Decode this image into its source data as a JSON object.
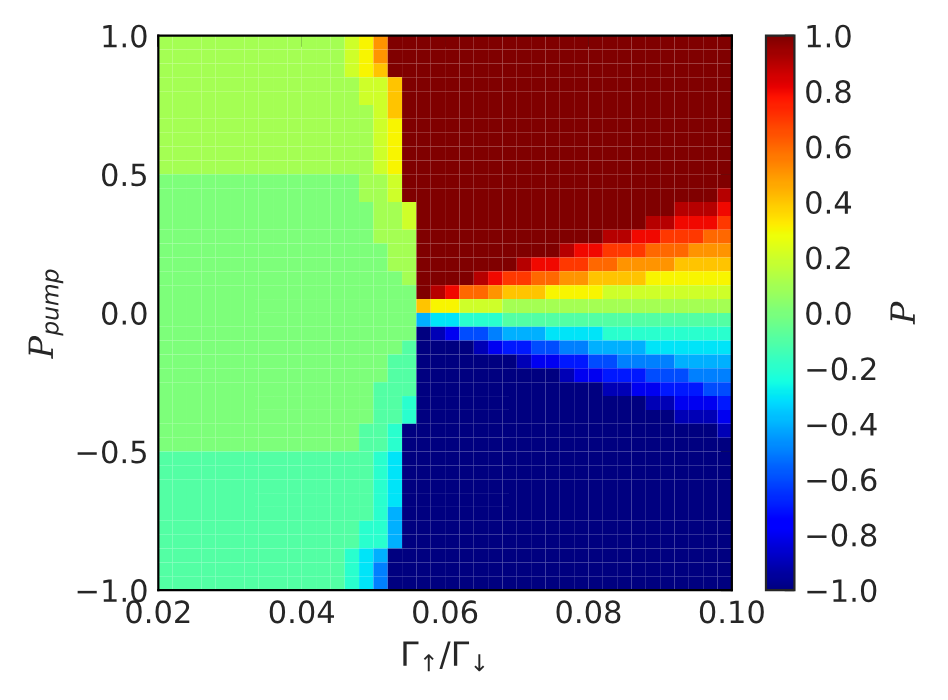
{
  "chart_data": {
    "type": "heatmap",
    "xlabel": "Γ$_{↑}$/Γ$_{↓}$",
    "ylabel": "P$_{pump}$",
    "clabel": "P",
    "x": [
      0.021,
      0.023,
      0.025,
      0.027,
      0.029,
      0.031,
      0.033,
      0.035,
      0.037,
      0.039,
      0.041,
      0.043,
      0.045,
      0.047,
      0.049,
      0.051,
      0.053,
      0.055,
      0.057,
      0.059,
      0.061,
      0.063,
      0.065,
      0.067,
      0.069,
      0.071,
      0.073,
      0.075,
      0.077,
      0.079,
      0.081,
      0.083,
      0.085,
      0.087,
      0.089,
      0.091,
      0.093,
      0.095,
      0.097,
      0.099
    ],
    "y": [
      0.975,
      0.925,
      0.875,
      0.825,
      0.775,
      0.725,
      0.675,
      0.625,
      0.575,
      0.525,
      0.475,
      0.425,
      0.375,
      0.325,
      0.275,
      0.225,
      0.175,
      0.125,
      0.075,
      0.025,
      -0.025,
      -0.075,
      -0.125,
      -0.175,
      -0.225,
      -0.275,
      -0.325,
      -0.375,
      -0.425,
      -0.475,
      -0.525,
      -0.575,
      -0.625,
      -0.675,
      -0.725,
      -0.775,
      -0.825,
      -0.875,
      -0.925,
      -0.975
    ],
    "cells": [
      [
        0.1,
        0.1,
        0.1,
        0.1,
        0.1,
        0.1,
        0.1,
        0.1,
        0.1,
        0.1,
        0.1,
        0.1,
        0.1,
        0.2,
        0.3,
        0.5,
        1,
        1,
        1,
        1,
        1,
        1,
        1,
        1,
        1,
        1,
        1,
        1,
        1,
        1,
        1,
        1,
        1,
        1,
        1,
        1,
        1,
        1,
        1,
        1
      ],
      [
        0.1,
        0.1,
        0.1,
        0.1,
        0.1,
        0.1,
        0.1,
        0.1,
        0.1,
        0.1,
        0.1,
        0.1,
        0.1,
        0.2,
        0.3,
        0.5,
        1,
        1,
        1,
        1,
        1,
        1,
        1,
        1,
        1,
        1,
        1,
        1,
        1,
        1,
        1,
        1,
        1,
        1,
        1,
        1,
        1,
        1,
        1,
        1
      ],
      [
        0.1,
        0.1,
        0.1,
        0.1,
        0.1,
        0.1,
        0.1,
        0.1,
        0.1,
        0.1,
        0.1,
        0.1,
        0.1,
        0.2,
        0.3,
        0.4,
        1,
        1,
        1,
        1,
        1,
        1,
        1,
        1,
        1,
        1,
        1,
        1,
        1,
        1,
        1,
        1,
        1,
        1,
        1,
        1,
        1,
        1,
        1,
        1
      ],
      [
        0.1,
        0.1,
        0.1,
        0.1,
        0.1,
        0.1,
        0.1,
        0.1,
        0.1,
        0.1,
        0.1,
        0.1,
        0.1,
        0.1,
        0.2,
        0.2,
        0.4,
        1,
        1,
        1,
        1,
        1,
        1,
        1,
        1,
        1,
        1,
        1,
        1,
        1,
        1,
        1,
        1,
        1,
        1,
        1,
        1,
        1,
        1,
        1
      ],
      [
        0.1,
        0.1,
        0.1,
        0.1,
        0.1,
        0.1,
        0.1,
        0.1,
        0.1,
        0.1,
        0.1,
        0.1,
        0.1,
        0.1,
        0.2,
        0.2,
        0.4,
        1,
        1,
        1,
        1,
        1,
        1,
        1,
        1,
        1,
        1,
        1,
        1,
        1,
        1,
        1,
        1,
        1,
        1,
        1,
        1,
        1,
        1,
        1
      ],
      [
        0.1,
        0.1,
        0.1,
        0.1,
        0.1,
        0.1,
        0.1,
        0.1,
        0.1,
        0.1,
        0.1,
        0.1,
        0.1,
        0.1,
        0.1,
        0.2,
        0.4,
        1,
        1,
        1,
        1,
        1,
        1,
        1,
        1,
        1,
        1,
        1,
        1,
        1,
        1,
        1,
        1,
        1,
        1,
        1,
        1,
        1,
        1,
        1
      ],
      [
        0.1,
        0.1,
        0.1,
        0.1,
        0.1,
        0.1,
        0.1,
        0.1,
        0.1,
        0.1,
        0.1,
        0.1,
        0.1,
        0.1,
        0.1,
        0.2,
        0.3,
        1,
        1,
        1,
        1,
        1,
        1,
        1,
        1,
        1,
        1,
        1,
        1,
        1,
        1,
        1,
        1,
        1,
        1,
        1,
        1,
        1,
        1,
        1
      ],
      [
        0.1,
        0.1,
        0.1,
        0.1,
        0.1,
        0.1,
        0.1,
        0.1,
        0.1,
        0.1,
        0.1,
        0.1,
        0.1,
        0.1,
        0.1,
        0.2,
        0.3,
        1,
        1,
        1,
        1,
        1,
        1,
        1,
        1,
        1,
        1,
        1,
        1,
        1,
        1,
        1,
        1,
        1,
        1,
        1,
        1,
        1,
        1,
        1
      ],
      [
        0.1,
        0.1,
        0.1,
        0.1,
        0.1,
        0.1,
        0.1,
        0.1,
        0.1,
        0.1,
        0.1,
        0.1,
        0.1,
        0.1,
        0.1,
        0.2,
        0.3,
        1,
        1,
        1,
        1,
        1,
        1,
        1,
        1,
        1,
        1,
        1,
        1,
        1,
        1,
        1,
        1,
        1,
        1,
        1,
        1,
        1,
        1,
        1
      ],
      [
        0.1,
        0.1,
        0.1,
        0.1,
        0.1,
        0.1,
        0.1,
        0.1,
        0.1,
        0.1,
        0.1,
        0.1,
        0.1,
        0.1,
        0.1,
        0.2,
        0.3,
        1,
        1,
        1,
        1,
        1,
        1,
        1,
        1,
        1,
        1,
        1,
        1,
        1,
        1,
        1,
        1,
        1,
        1,
        1,
        1,
        1,
        1,
        1
      ],
      [
        0,
        0,
        0,
        0,
        0,
        0,
        0,
        0,
        0,
        0,
        0,
        0,
        0,
        0,
        0.1,
        0.1,
        0.2,
        1,
        1,
        1,
        1,
        1,
        1,
        1,
        1,
        1,
        1,
        1,
        1,
        1,
        1,
        1,
        1,
        1,
        1,
        1,
        1,
        1,
        1,
        1
      ],
      [
        0,
        0,
        0,
        0,
        0,
        0,
        0,
        0,
        0,
        0,
        0,
        0,
        0,
        0,
        0.1,
        0.1,
        0.2,
        1,
        1,
        1,
        1,
        1,
        1,
        1,
        1,
        1,
        1,
        1,
        1,
        1,
        1,
        1,
        1,
        1,
        1,
        1,
        1,
        1,
        1,
        0.9
      ],
      [
        0,
        0,
        0,
        0,
        0,
        0,
        0,
        0,
        0,
        0,
        0,
        0,
        0,
        0,
        0,
        0.1,
        0.1,
        0.2,
        1,
        1,
        1,
        1,
        1,
        1,
        1,
        1,
        1,
        1,
        1,
        1,
        1,
        1,
        1,
        1,
        1,
        1,
        0.9,
        0.9,
        0.9,
        0.8
      ],
      [
        0,
        0,
        0,
        0,
        0,
        0,
        0,
        0,
        0,
        0,
        0,
        0,
        0,
        0,
        0,
        0.1,
        0.1,
        0.2,
        1,
        1,
        1,
        1,
        1,
        1,
        1,
        1,
        1,
        1,
        1,
        1,
        1,
        1,
        1,
        1,
        0.9,
        0.9,
        0.8,
        0.8,
        0.8,
        0.7
      ],
      [
        0,
        0,
        0,
        0,
        0,
        0,
        0,
        0,
        0,
        0,
        0,
        0,
        0,
        0,
        0,
        0.1,
        0.1,
        0.1,
        1,
        1,
        1,
        1,
        1,
        1,
        1,
        1,
        1,
        1,
        1,
        1,
        1,
        0.9,
        0.9,
        0.8,
        0.8,
        0.7,
        0.7,
        0.7,
        0.6,
        0.6
      ],
      [
        0,
        0,
        0,
        0,
        0,
        0,
        0,
        0,
        0,
        0,
        0,
        0,
        0,
        0,
        0,
        0,
        0.1,
        0.1,
        1,
        1,
        1,
        1,
        1,
        1,
        1,
        1,
        1,
        1,
        0.9,
        0.8,
        0.8,
        0.7,
        0.7,
        0.7,
        0.6,
        0.6,
        0.6,
        0.5,
        0.5,
        0.5
      ],
      [
        0,
        0,
        0,
        0,
        0,
        0,
        0,
        0,
        0,
        0,
        0,
        0,
        0,
        0,
        0,
        0,
        0.1,
        0.1,
        1,
        1,
        1,
        1,
        1,
        1,
        1,
        0.9,
        0.8,
        0.8,
        0.7,
        0.7,
        0.6,
        0.6,
        0.5,
        0.5,
        0.5,
        0.5,
        0.4,
        0.4,
        0.4,
        0.4
      ],
      [
        0,
        0,
        0,
        0,
        0,
        0,
        0,
        0,
        0,
        0,
        0,
        0,
        0,
        0,
        0,
        0,
        0,
        0.1,
        1,
        1,
        1,
        1,
        0.9,
        0.8,
        0.7,
        0.7,
        0.6,
        0.6,
        0.5,
        0.5,
        0.4,
        0.4,
        0.4,
        0.4,
        0.3,
        0.3,
        0.3,
        0.3,
        0.3,
        0.3
      ],
      [
        0,
        0,
        0,
        0,
        0,
        0,
        0,
        0,
        0,
        0,
        0,
        0,
        0,
        0,
        0,
        0,
        0,
        0,
        1,
        0.9,
        0.8,
        0.6,
        0.6,
        0.5,
        0.4,
        0.4,
        0.4,
        0.3,
        0.3,
        0.3,
        0.3,
        0.2,
        0.2,
        0.2,
        0.2,
        0.2,
        0.2,
        0.2,
        0.2,
        0.2
      ],
      [
        0,
        0,
        0,
        0,
        0,
        0,
        0,
        0,
        0,
        0,
        0,
        0,
        0,
        0,
        0,
        0,
        0,
        0,
        0.4,
        0.3,
        0.3,
        0.2,
        0.2,
        0.2,
        0.1,
        0.1,
        0.1,
        0.1,
        0.1,
        0.1,
        0.1,
        0.1,
        0.1,
        0.1,
        0.1,
        0.1,
        0.1,
        0.1,
        0.1,
        0.1
      ],
      [
        0,
        0,
        0,
        0,
        0,
        0,
        0,
        0,
        0,
        0,
        0,
        0,
        0,
        0,
        0,
        0,
        0,
        0,
        -0.4,
        -0.3,
        -0.3,
        -0.2,
        -0.2,
        -0.2,
        -0.1,
        -0.1,
        -0.1,
        -0.1,
        -0.1,
        -0.1,
        -0.1,
        -0.1,
        -0.1,
        -0.1,
        -0.1,
        -0.1,
        -0.1,
        -0.1,
        -0.1,
        -0.1
      ],
      [
        0,
        0,
        0,
        0,
        0,
        0,
        0,
        0,
        0,
        0,
        0,
        0,
        0,
        0,
        0,
        0,
        0,
        0,
        -1,
        -0.9,
        -0.8,
        -0.6,
        -0.6,
        -0.5,
        -0.4,
        -0.4,
        -0.4,
        -0.3,
        -0.3,
        -0.3,
        -0.3,
        -0.2,
        -0.2,
        -0.2,
        -0.2,
        -0.2,
        -0.2,
        -0.2,
        -0.2,
        -0.2
      ],
      [
        0,
        0,
        0,
        0,
        0,
        0,
        0,
        0,
        0,
        0,
        0,
        0,
        0,
        0,
        0,
        0,
        0,
        -0.1,
        -1,
        -1,
        -1,
        -1,
        -0.9,
        -0.8,
        -0.7,
        -0.7,
        -0.6,
        -0.6,
        -0.5,
        -0.5,
        -0.4,
        -0.4,
        -0.4,
        -0.4,
        -0.3,
        -0.3,
        -0.3,
        -0.3,
        -0.3,
        -0.3
      ],
      [
        0,
        0,
        0,
        0,
        0,
        0,
        0,
        0,
        0,
        0,
        0,
        0,
        0,
        0,
        0,
        0,
        -0.1,
        -0.1,
        -1,
        -1,
        -1,
        -1,
        -1,
        -1,
        -1,
        -0.9,
        -0.8,
        -0.8,
        -0.7,
        -0.7,
        -0.6,
        -0.6,
        -0.5,
        -0.5,
        -0.5,
        -0.5,
        -0.4,
        -0.4,
        -0.4,
        -0.4
      ],
      [
        0,
        0,
        0,
        0,
        0,
        0,
        0,
        0,
        0,
        0,
        0,
        0,
        0,
        0,
        0,
        0,
        -0.1,
        -0.1,
        -1,
        -1,
        -1,
        -1,
        -1,
        -1,
        -1,
        -1,
        -1,
        -1,
        -0.9,
        -0.8,
        -0.8,
        -0.7,
        -0.7,
        -0.7,
        -0.6,
        -0.6,
        -0.6,
        -0.5,
        -0.5,
        -0.5
      ],
      [
        0,
        0,
        0,
        0,
        0,
        0,
        0,
        0,
        0,
        0,
        0,
        0,
        0,
        0,
        0,
        -0.1,
        -0.1,
        -0.1,
        -1,
        -1,
        -1,
        -1,
        -1,
        -1,
        -1,
        -1,
        -1,
        -1,
        -1,
        -1,
        -1,
        -0.9,
        -0.9,
        -0.8,
        -0.8,
        -0.7,
        -0.7,
        -0.7,
        -0.6,
        -0.6
      ],
      [
        0,
        0,
        0,
        0,
        0,
        0,
        0,
        0,
        0,
        0,
        0,
        0,
        0,
        0,
        0,
        -0.1,
        -0.1,
        -0.2,
        -1,
        -1,
        -1,
        -1,
        -1,
        -1,
        -1,
        -1,
        -1,
        -1,
        -1,
        -1,
        -1,
        -1,
        -1,
        -1,
        -0.9,
        -0.9,
        -0.8,
        -0.8,
        -0.8,
        -0.7
      ],
      [
        0,
        0,
        0,
        0,
        0,
        0,
        0,
        0,
        0,
        0,
        0,
        0,
        0,
        0,
        0,
        -0.1,
        -0.1,
        -0.2,
        -1,
        -1,
        -1,
        -1,
        -1,
        -1,
        -1,
        -1,
        -1,
        -1,
        -1,
        -1,
        -1,
        -1,
        -1,
        -1,
        -1,
        -1,
        -0.9,
        -0.9,
        -0.9,
        -0.8
      ],
      [
        0,
        0,
        0,
        0,
        0,
        0,
        0,
        0,
        0,
        0,
        0,
        0,
        0,
        0,
        -0.1,
        -0.1,
        -0.2,
        -1,
        -1,
        -1,
        -1,
        -1,
        -1,
        -1,
        -1,
        -1,
        -1,
        -1,
        -1,
        -1,
        -1,
        -1,
        -1,
        -1,
        -1,
        -1,
        -1,
        -1,
        -1,
        -0.9
      ],
      [
        0,
        0,
        0,
        0,
        0,
        0,
        0,
        0,
        0,
        0,
        0,
        0,
        0,
        0,
        -0.1,
        -0.1,
        -0.2,
        -1,
        -1,
        -1,
        -1,
        -1,
        -1,
        -1,
        -1,
        -1,
        -1,
        -1,
        -1,
        -1,
        -1,
        -1,
        -1,
        -1,
        -1,
        -1,
        -1,
        -1,
        -1,
        -1
      ],
      [
        -0.1,
        -0.1,
        -0.1,
        -0.1,
        -0.1,
        -0.1,
        -0.1,
        -0.1,
        -0.1,
        -0.1,
        -0.1,
        -0.1,
        -0.1,
        -0.1,
        -0.1,
        -0.2,
        -0.3,
        -1,
        -1,
        -1,
        -1,
        -1,
        -1,
        -1,
        -1,
        -1,
        -1,
        -1,
        -1,
        -1,
        -1,
        -1,
        -1,
        -1,
        -1,
        -1,
        -1,
        -1,
        -1,
        -1
      ],
      [
        -0.1,
        -0.1,
        -0.1,
        -0.1,
        -0.1,
        -0.1,
        -0.1,
        -0.1,
        -0.1,
        -0.1,
        -0.1,
        -0.1,
        -0.1,
        -0.1,
        -0.1,
        -0.2,
        -0.3,
        -1,
        -1,
        -1,
        -1,
        -1,
        -1,
        -1,
        -1,
        -1,
        -1,
        -1,
        -1,
        -1,
        -1,
        -1,
        -1,
        -1,
        -1,
        -1,
        -1,
        -1,
        -1,
        -1
      ],
      [
        -0.1,
        -0.1,
        -0.1,
        -0.1,
        -0.1,
        -0.1,
        -0.1,
        -0.1,
        -0.1,
        -0.1,
        -0.1,
        -0.1,
        -0.1,
        -0.1,
        -0.1,
        -0.2,
        -0.3,
        -1,
        -1,
        -1,
        -1,
        -1,
        -1,
        -1,
        -1,
        -1,
        -1,
        -1,
        -1,
        -1,
        -1,
        -1,
        -1,
        -1,
        -1,
        -1,
        -1,
        -1,
        -1,
        -1
      ],
      [
        -0.1,
        -0.1,
        -0.1,
        -0.1,
        -0.1,
        -0.1,
        -0.1,
        -0.1,
        -0.1,
        -0.1,
        -0.1,
        -0.1,
        -0.1,
        -0.1,
        -0.1,
        -0.2,
        -0.3,
        -1,
        -1,
        -1,
        -1,
        -1,
        -1,
        -1,
        -1,
        -1,
        -1,
        -1,
        -1,
        -1,
        -1,
        -1,
        -1,
        -1,
        -1,
        -1,
        -1,
        -1,
        -1,
        -1
      ],
      [
        -0.1,
        -0.1,
        -0.1,
        -0.1,
        -0.1,
        -0.1,
        -0.1,
        -0.1,
        -0.1,
        -0.1,
        -0.1,
        -0.1,
        -0.1,
        -0.1,
        -0.1,
        -0.2,
        -0.4,
        -1,
        -1,
        -1,
        -1,
        -1,
        -1,
        -1,
        -1,
        -1,
        -1,
        -1,
        -1,
        -1,
        -1,
        -1,
        -1,
        -1,
        -1,
        -1,
        -1,
        -1,
        -1,
        -1
      ],
      [
        -0.1,
        -0.1,
        -0.1,
        -0.1,
        -0.1,
        -0.1,
        -0.1,
        -0.1,
        -0.1,
        -0.1,
        -0.1,
        -0.1,
        -0.1,
        -0.1,
        -0.2,
        -0.2,
        -0.4,
        -1,
        -1,
        -1,
        -1,
        -1,
        -1,
        -1,
        -1,
        -1,
        -1,
        -1,
        -1,
        -1,
        -1,
        -1,
        -1,
        -1,
        -1,
        -1,
        -1,
        -1,
        -1,
        -1
      ],
      [
        -0.1,
        -0.1,
        -0.1,
        -0.1,
        -0.1,
        -0.1,
        -0.1,
        -0.1,
        -0.1,
        -0.1,
        -0.1,
        -0.1,
        -0.1,
        -0.1,
        -0.2,
        -0.2,
        -0.4,
        -1,
        -1,
        -1,
        -1,
        -1,
        -1,
        -1,
        -1,
        -1,
        -1,
        -1,
        -1,
        -1,
        -1,
        -1,
        -1,
        -1,
        -1,
        -1,
        -1,
        -1,
        -1,
        -1
      ],
      [
        -0.1,
        -0.1,
        -0.1,
        -0.1,
        -0.1,
        -0.1,
        -0.1,
        -0.1,
        -0.1,
        -0.1,
        -0.1,
        -0.1,
        -0.1,
        -0.2,
        -0.3,
        -0.4,
        -1,
        -1,
        -1,
        -1,
        -1,
        -1,
        -1,
        -1,
        -1,
        -1,
        -1,
        -1,
        -1,
        -1,
        -1,
        -1,
        -1,
        -1,
        -1,
        -1,
        -1,
        -1,
        -1,
        -1
      ],
      [
        -0.1,
        -0.1,
        -0.1,
        -0.1,
        -0.1,
        -0.1,
        -0.1,
        -0.1,
        -0.1,
        -0.1,
        -0.1,
        -0.1,
        -0.1,
        -0.2,
        -0.3,
        -0.5,
        -1,
        -1,
        -1,
        -1,
        -1,
        -1,
        -1,
        -1,
        -1,
        -1,
        -1,
        -1,
        -1,
        -1,
        -1,
        -1,
        -1,
        -1,
        -1,
        -1,
        -1,
        -1,
        -1,
        -1
      ],
      [
        -0.1,
        -0.1,
        -0.1,
        -0.1,
        -0.1,
        -0.1,
        -0.1,
        -0.1,
        -0.1,
        -0.1,
        -0.1,
        -0.1,
        -0.1,
        -0.2,
        -0.3,
        -0.5,
        -1,
        -1,
        -1,
        -1,
        -1,
        -1,
        -1,
        -1,
        -1,
        -1,
        -1,
        -1,
        -1,
        -1,
        -1,
        -1,
        -1,
        -1,
        -1,
        -1,
        -1,
        -1,
        -1,
        -1
      ]
    ],
    "xlim": [
      0.02,
      0.1
    ],
    "xticks": [
      0.02,
      0.04,
      0.06,
      0.08,
      {
        "value": 0.1,
        "label": "0.10"
      }
    ],
    "ylim": [
      -1.0,
      1.0
    ],
    "yticks": [
      {
        "value": -1.0,
        "label": "−1.0"
      },
      {
        "value": -0.5,
        "label": "−0.5"
      },
      {
        "value": 0.0,
        "label": "0.0"
      },
      {
        "value": 0.5,
        "label": "0.5"
      },
      {
        "value": 1.0,
        "label": "1.0"
      }
    ],
    "clim": [
      -1.0,
      1.0
    ],
    "cticks": [
      {
        "value": -1.0,
        "label": "−1.0"
      },
      {
        "value": -0.8,
        "label": "−0.8"
      },
      {
        "value": -0.6,
        "label": "−0.6"
      },
      {
        "value": -0.4,
        "label": "−0.4"
      },
      {
        "value": -0.2,
        "label": "−0.2"
      },
      {
        "value": 0.0,
        "label": "0.0"
      },
      {
        "value": 0.2,
        "label": "0.2"
      },
      {
        "value": 0.4,
        "label": "0.4"
      },
      {
        "value": 0.6,
        "label": "0.6"
      },
      {
        "value": 0.8,
        "label": "0.8"
      },
      {
        "value": 1.0,
        "label": "1.0"
      }
    ],
    "grid": false
  }
}
